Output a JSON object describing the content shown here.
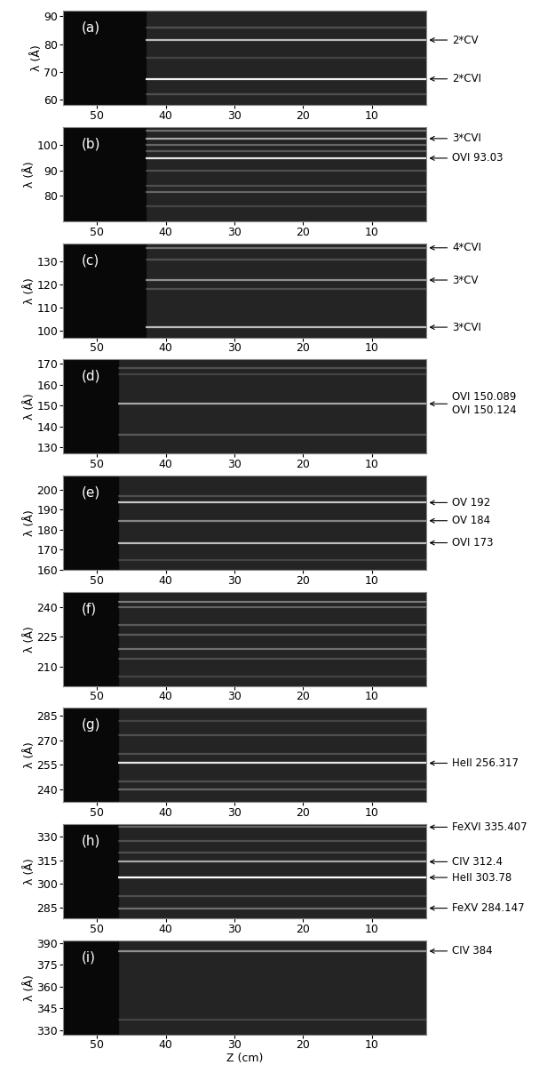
{
  "chart_data": [
    {
      "type": "spectrogram",
      "panel": "(a)",
      "ylabel": "λ (Å)",
      "xlim": [
        55,
        2
      ],
      "ylim": [
        58,
        92
      ],
      "xticks": [
        50,
        40,
        30,
        20,
        10
      ],
      "yticks": [
        60,
        70,
        80,
        90
      ],
      "signal_z": 43,
      "lines": [
        {
          "wavelength": 81.5,
          "intensity": 0.7,
          "label": "2*CV"
        },
        {
          "wavelength": 67.5,
          "intensity": 0.95,
          "label": "2*CVI"
        },
        {
          "wavelength": 86,
          "intensity": 0.2
        },
        {
          "wavelength": 75,
          "intensity": 0.15
        },
        {
          "wavelength": 62,
          "intensity": 0.2
        }
      ]
    },
    {
      "type": "spectrogram",
      "panel": "(b)",
      "ylabel": "λ (Å)",
      "xlim": [
        55,
        2
      ],
      "ylim": [
        70,
        107
      ],
      "xticks": [
        50,
        40,
        30,
        20,
        10
      ],
      "yticks": [
        80,
        90,
        100
      ],
      "signal_z": 43,
      "lines": [
        {
          "wavelength": 102.5,
          "intensity": 0.6,
          "label": "3*CVI"
        },
        {
          "wavelength": 94.8,
          "intensity": 0.9,
          "label": "OVI 93.03"
        },
        {
          "wavelength": 105.5,
          "intensity": 0.35
        },
        {
          "wavelength": 100,
          "intensity": 0.3
        },
        {
          "wavelength": 97.5,
          "intensity": 0.25
        },
        {
          "wavelength": 90,
          "intensity": 0.2
        },
        {
          "wavelength": 84,
          "intensity": 0.2
        },
        {
          "wavelength": 81.5,
          "intensity": 0.3
        },
        {
          "wavelength": 76,
          "intensity": 0.15
        }
      ]
    },
    {
      "type": "spectrogram",
      "panel": "(c)",
      "ylabel": "λ (Å)",
      "xlim": [
        55,
        2
      ],
      "ylim": [
        97,
        138
      ],
      "xticks": [
        50,
        40,
        30,
        20,
        10
      ],
      "yticks": [
        100,
        110,
        120,
        130
      ],
      "signal_z": 43,
      "lines": [
        {
          "wavelength": 136,
          "intensity": 0.35,
          "label": "4*CVI"
        },
        {
          "wavelength": 122,
          "intensity": 0.5,
          "label": "3*CV"
        },
        {
          "wavelength": 101.5,
          "intensity": 0.7,
          "label": "3*CVI"
        },
        {
          "wavelength": 131,
          "intensity": 0.2
        },
        {
          "wavelength": 118,
          "intensity": 0.2
        }
      ]
    },
    {
      "type": "spectrogram",
      "panel": "(d)",
      "ylabel": "λ (Å)",
      "xlim": [
        55,
        2
      ],
      "ylim": [
        127,
        172
      ],
      "xticks": [
        50,
        40,
        30,
        20,
        10
      ],
      "yticks": [
        130,
        140,
        150,
        160,
        170
      ],
      "signal_z": 47,
      "lines": [
        {
          "wavelength": 150.8,
          "intensity": 0.6,
          "label": [
            "OVI 150.089",
            "OVI 150.124"
          ]
        },
        {
          "wavelength": 168,
          "intensity": 0.2
        },
        {
          "wavelength": 165,
          "intensity": 0.15
        },
        {
          "wavelength": 136,
          "intensity": 0.25
        }
      ]
    },
    {
      "type": "spectrogram",
      "panel": "(e)",
      "ylabel": "λ (Å)",
      "xlim": [
        55,
        2
      ],
      "ylim": [
        160,
        207
      ],
      "xticks": [
        50,
        40,
        30,
        20,
        10
      ],
      "yticks": [
        160,
        170,
        180,
        190,
        200
      ],
      "signal_z": 47,
      "lines": [
        {
          "wavelength": 193.5,
          "intensity": 0.75,
          "label": "OV 192"
        },
        {
          "wavelength": 184.5,
          "intensity": 0.45,
          "label": "OV 184"
        },
        {
          "wavelength": 173.5,
          "intensity": 0.7,
          "label": "OVI 173"
        },
        {
          "wavelength": 197,
          "intensity": 0.2
        },
        {
          "wavelength": 165,
          "intensity": 0.15
        }
      ]
    },
    {
      "type": "spectrogram",
      "panel": "(f)",
      "ylabel": "λ (Å)",
      "xlim": [
        55,
        2
      ],
      "ylim": [
        200,
        248
      ],
      "xticks": [
        50,
        40,
        30,
        20,
        10
      ],
      "yticks": [
        210,
        225,
        240
      ],
      "signal_z": 47,
      "lines": [
        {
          "wavelength": 243,
          "intensity": 0.4
        },
        {
          "wavelength": 240,
          "intensity": 0.3
        },
        {
          "wavelength": 231,
          "intensity": 0.25
        },
        {
          "wavelength": 226,
          "intensity": 0.25
        },
        {
          "wavelength": 219,
          "intensity": 0.35
        },
        {
          "wavelength": 214,
          "intensity": 0.2
        },
        {
          "wavelength": 205,
          "intensity": 0.15
        }
      ]
    },
    {
      "type": "spectrogram",
      "panel": "(g)",
      "ylabel": "λ (Å)",
      "xlim": [
        55,
        2
      ],
      "ylim": [
        232,
        290
      ],
      "xticks": [
        50,
        40,
        30,
        20,
        10
      ],
      "yticks": [
        240,
        255,
        270,
        285
      ],
      "signal_z": 47,
      "lines": [
        {
          "wavelength": 256,
          "intensity": 0.9,
          "label": "HeII 256.317"
        },
        {
          "wavelength": 282,
          "intensity": 0.15
        },
        {
          "wavelength": 273,
          "intensity": 0.2
        },
        {
          "wavelength": 262,
          "intensity": 0.2
        },
        {
          "wavelength": 245,
          "intensity": 0.2
        },
        {
          "wavelength": 240,
          "intensity": 0.3
        }
      ]
    },
    {
      "type": "spectrogram",
      "panel": "(h)",
      "ylabel": "λ (Å)",
      "xlim": [
        55,
        2
      ],
      "ylim": [
        278,
        338
      ],
      "xticks": [
        50,
        40,
        30,
        20,
        10
      ],
      "yticks": [
        285,
        300,
        315,
        330
      ],
      "signal_z": 47,
      "lines": [
        {
          "wavelength": 336,
          "intensity": 0.3,
          "label": "FeXVI 335.407"
        },
        {
          "wavelength": 314,
          "intensity": 0.6,
          "label": "CIV 312.4"
        },
        {
          "wavelength": 304,
          "intensity": 1.0,
          "label": "HeII 303.78"
        },
        {
          "wavelength": 284.5,
          "intensity": 0.35,
          "label": "FeXV 284.147"
        },
        {
          "wavelength": 327,
          "intensity": 0.2
        },
        {
          "wavelength": 320,
          "intensity": 0.2
        },
        {
          "wavelength": 292,
          "intensity": 0.2
        }
      ]
    },
    {
      "type": "spectrogram",
      "panel": "(i)",
      "ylabel": "λ (Å)",
      "xlabel": "Z (cm)",
      "xlim": [
        55,
        2
      ],
      "ylim": [
        327,
        392
      ],
      "xticks": [
        50,
        40,
        30,
        20,
        10
      ],
      "yticks": [
        330,
        345,
        360,
        375,
        390
      ],
      "signal_z": 47,
      "lines": [
        {
          "wavelength": 384.5,
          "intensity": 0.5,
          "label": "CIV 384"
        },
        {
          "wavelength": 337,
          "intensity": 0.15
        }
      ]
    }
  ]
}
